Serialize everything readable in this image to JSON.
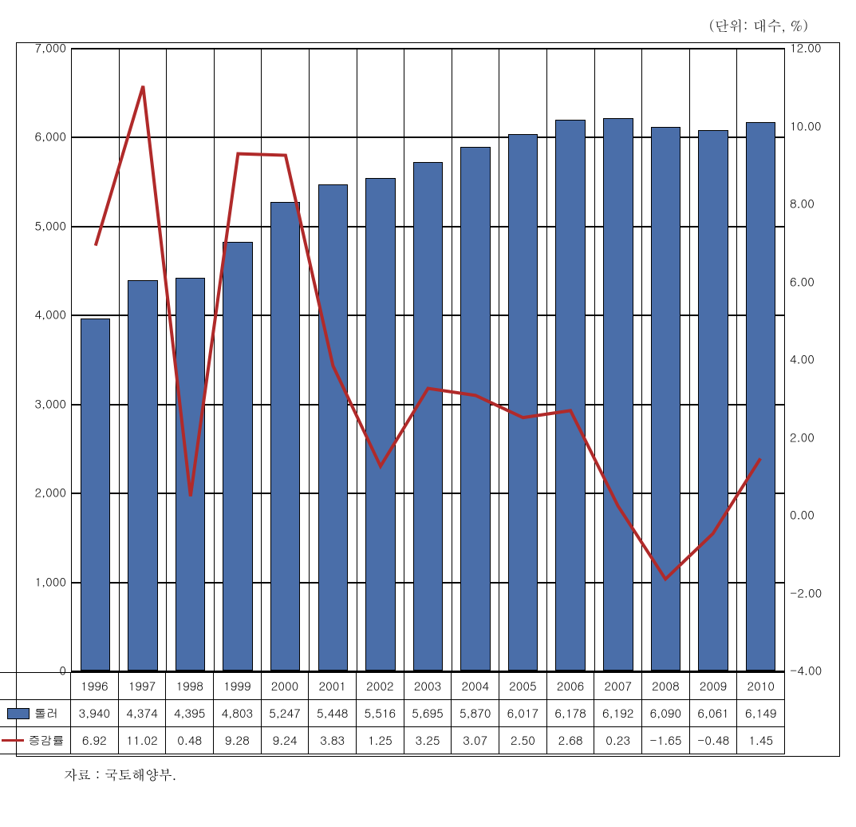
{
  "unit_label": "(단위: 대수, %)",
  "source_label": "자료 : 국토해양부.",
  "chart": {
    "type": "bar+line",
    "background_color": "#ffffff",
    "grid_color": "#000000",
    "bar_color": "#4a6ea9",
    "bar_border": "#000000",
    "line_color": "#b02a2a",
    "line_width": 4,
    "font_size": 15,
    "categories": [
      "1996",
      "1997",
      "1998",
      "1999",
      "2000",
      "2001",
      "2002",
      "2003",
      "2004",
      "2005",
      "2006",
      "2007",
      "2008",
      "2009",
      "2010"
    ],
    "left_axis": {
      "min": 0,
      "max": 7000,
      "ticks": [
        0,
        1000,
        2000,
        3000,
        4000,
        5000,
        6000,
        7000
      ],
      "tick_labels": [
        "0",
        "1,000",
        "2,000",
        "3,000",
        "4,000",
        "5,000",
        "6,000",
        "7,000"
      ]
    },
    "right_axis": {
      "min": -4,
      "max": 12,
      "ticks": [
        -4,
        -2,
        0,
        2,
        4,
        6,
        8,
        10,
        12
      ],
      "tick_labels": [
        "-4.00",
        "-2.00",
        "0.00",
        "2.00",
        "4.00",
        "6.00",
        "8.00",
        "10.00",
        "12.00"
      ]
    },
    "series_bar": {
      "name": "톨러",
      "values": [
        3940,
        4374,
        4395,
        4803,
        5247,
        5448,
        5516,
        5695,
        5870,
        6017,
        6178,
        6192,
        6090,
        6061,
        6149
      ],
      "labels": [
        "3,940",
        "4,374",
        "4,395",
        "4,803",
        "5,247",
        "5,448",
        "5,516",
        "5,695",
        "5,870",
        "6,017",
        "6,178",
        "6,192",
        "6,090",
        "6,061",
        "6,149"
      ]
    },
    "series_line": {
      "name": "증감률",
      "values": [
        6.92,
        11.02,
        0.48,
        9.28,
        9.24,
        3.83,
        1.25,
        3.25,
        3.07,
        2.5,
        2.68,
        0.23,
        -1.65,
        -0.48,
        1.45
      ],
      "labels": [
        "6.92",
        "11.02",
        "0.48",
        "9.28",
        "9.24",
        "3.83",
        "1.25",
        "3.25",
        "3.07",
        "2.50",
        "2.68",
        "0.23",
        "-1.65",
        "-0.48",
        "1.45"
      ]
    }
  }
}
